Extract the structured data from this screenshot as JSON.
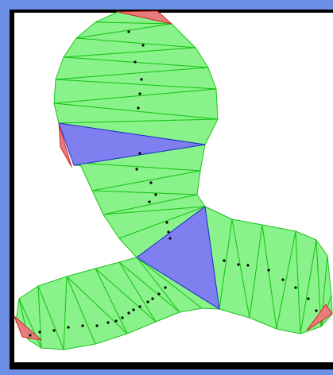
{
  "colors": {
    "frame": "#6d8fe6",
    "background": "#ffffff",
    "interior": "#8af28a",
    "interior_stroke": "#19c419",
    "highlight": "#7f7ff0",
    "highlight_stroke": "#1f2fd0",
    "ear": "#e87c7c",
    "ear_stroke": "#d02828",
    "dot": "#000000"
  },
  "icons": {
    "triangle_mesh": "triangulated-polygon",
    "centroid_marker": "dot"
  }
}
